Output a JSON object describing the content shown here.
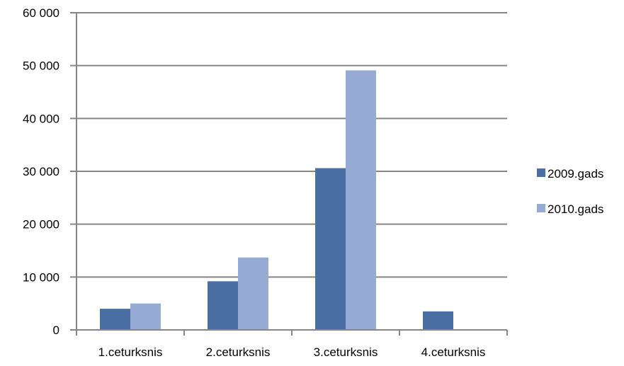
{
  "chart_data": {
    "type": "bar",
    "categories": [
      "1.ceturksnis",
      "2.ceturksnis",
      "3.ceturksnis",
      "4.ceturksnis"
    ],
    "series": [
      {
        "name": "2009.gads",
        "color": "#4A6FA5",
        "values": [
          4000,
          9200,
          30600,
          3500
        ]
      },
      {
        "name": "2010.gads",
        "color": "#95ABD3",
        "values": [
          5000,
          13700,
          49100,
          0
        ]
      }
    ],
    "ylim": [
      0,
      60000
    ],
    "yticks": [
      0,
      10000,
      20000,
      30000,
      40000,
      50000,
      60000
    ],
    "ytick_labels": [
      "0",
      "10 000",
      "20 000",
      "30 000",
      "40 000",
      "50 000",
      "60 000"
    ],
    "grid": true,
    "legend_position": "right",
    "title": "",
    "xlabel": "",
    "ylabel": ""
  }
}
